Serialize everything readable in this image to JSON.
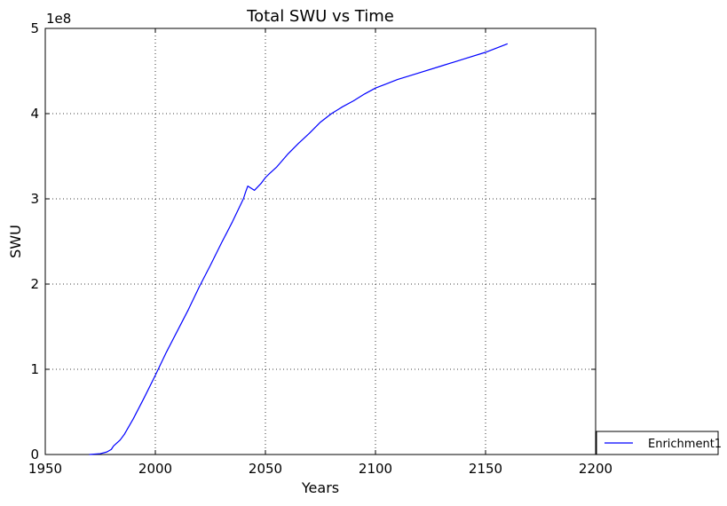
{
  "chart_data": {
    "type": "line",
    "title": "Total SWU vs Time",
    "xlabel": "Years",
    "ylabel": "SWU",
    "y_offset_label": "1e8",
    "xlim": [
      1950,
      2200
    ],
    "ylim": [
      0,
      5
    ],
    "x_ticks": [
      1950,
      2000,
      2050,
      2100,
      2150,
      2200
    ],
    "y_ticks": [
      0,
      1,
      2,
      3,
      4,
      5
    ],
    "grid": true,
    "legend_position": "outside-bottom-right",
    "series": [
      {
        "name": "Enrichment1",
        "color": "#0000ff",
        "x": [
          1970,
          1975,
          1978,
          1980,
          1981,
          1984,
          1986,
          1990,
          1995,
          2000,
          2005,
          2010,
          2015,
          2020,
          2025,
          2030,
          2035,
          2040,
          2041,
          2042,
          2045,
          2048,
          2050,
          2052,
          2055,
          2060,
          2065,
          2070,
          2075,
          2080,
          2085,
          2090,
          2095,
          2100,
          2105,
          2110,
          2120,
          2130,
          2140,
          2150,
          2160
        ],
        "y": [
          0.0,
          0.01,
          0.03,
          0.06,
          0.1,
          0.17,
          0.24,
          0.42,
          0.67,
          0.93,
          1.2,
          1.45,
          1.7,
          1.97,
          2.22,
          2.48,
          2.73,
          3.0,
          3.08,
          3.15,
          3.1,
          3.18,
          3.25,
          3.3,
          3.37,
          3.52,
          3.65,
          3.77,
          3.9,
          4.0,
          4.08,
          4.15,
          4.23,
          4.3,
          4.35,
          4.4,
          4.48,
          4.56,
          4.64,
          4.72,
          4.82
        ]
      }
    ]
  }
}
